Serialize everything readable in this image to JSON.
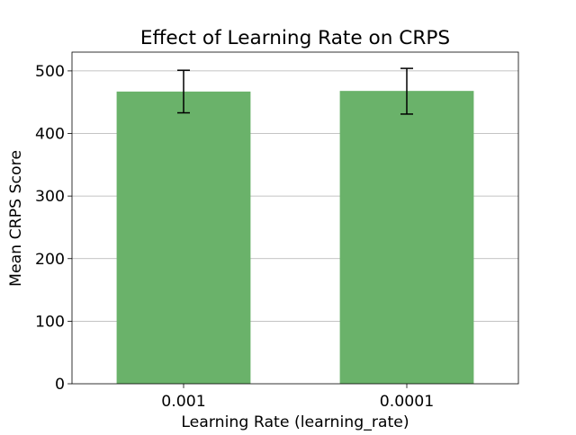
{
  "chart_data": {
    "type": "bar",
    "title": "Effect of Learning Rate on CRPS",
    "xlabel": "Learning Rate (learning_rate)",
    "ylabel": "Mean CRPS Score",
    "categories": [
      "0.001",
      "0.0001"
    ],
    "values": [
      467,
      468
    ],
    "error_low": [
      433,
      431
    ],
    "error_high": [
      501,
      504
    ],
    "ylim": [
      0,
      530
    ],
    "yticks": [
      0,
      100,
      200,
      300,
      400,
      500
    ],
    "grid": "y-axis only",
    "legend": "none",
    "bar_color": "#6ab26a",
    "error_color": "#000000",
    "grid_color": "#b0b0b0"
  }
}
